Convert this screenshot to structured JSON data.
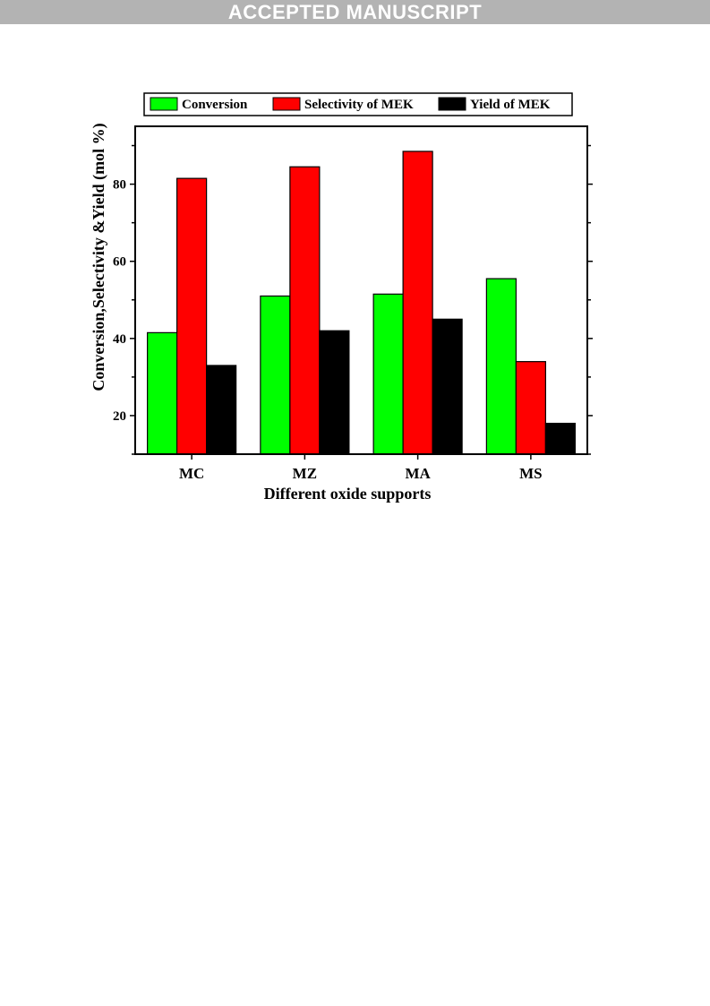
{
  "banner": {
    "text": "ACCEPTED MANUSCRIPT"
  },
  "chart_data": {
    "type": "bar",
    "title": "",
    "xlabel": "Different  oxide  supports",
    "ylabel": "Conversion,Selectivity &Yield (mol  %)",
    "categories": [
      "MC",
      "MZ",
      "MA",
      "MS"
    ],
    "series": [
      {
        "name": "Conversion",
        "color": "#00ff00",
        "values": [
          41.5,
          51,
          51.5,
          55.5
        ]
      },
      {
        "name": "Selectivity of MEK",
        "color": "#ff0000",
        "values": [
          81.5,
          84.5,
          88.5,
          34
        ]
      },
      {
        "name": "Yield of MEK",
        "color": "#000000",
        "values": [
          33,
          42,
          45,
          18
        ]
      }
    ],
    "ylim": [
      10,
      95
    ],
    "yticks": [
      20,
      40,
      60,
      80
    ],
    "legend_position": "top",
    "grid": false
  }
}
